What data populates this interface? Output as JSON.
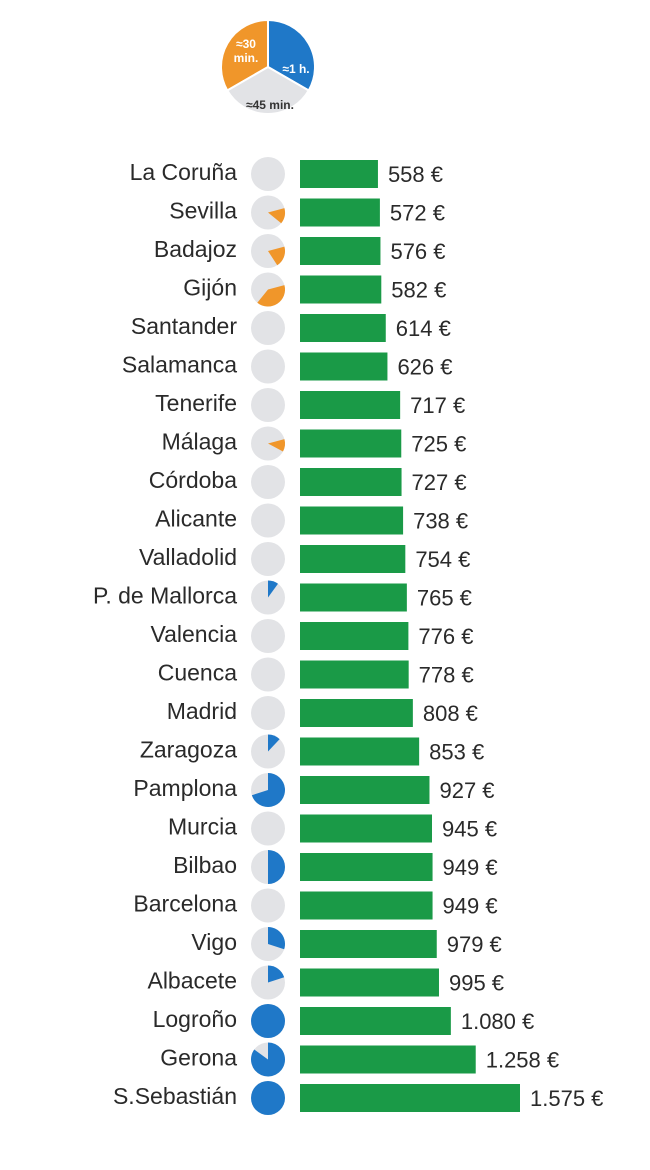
{
  "legend": {
    "items": [
      {
        "label_line1": "≈30",
        "label_line2": "min.",
        "color": "#f0962a"
      },
      {
        "label_line1": "≈1 h.",
        "label_line2": "",
        "color": "#1f78c8"
      },
      {
        "label_line1": "≈45 min.",
        "label_line2": "",
        "color": "#e2e3e6"
      }
    ]
  },
  "colors": {
    "bar": "#1a9a47",
    "pie_bg": "#e2e3e6",
    "pie_orange": "#f0962a",
    "pie_blue": "#1f78c8"
  },
  "chart_data": {
    "type": "bar",
    "orientation": "horizontal",
    "unit": "€",
    "categories": [
      "La Coruña",
      "Sevilla",
      "Badajoz",
      "Gijón",
      "Santander",
      "Salamanca",
      "Tenerife",
      "Málaga",
      "Córdoba",
      "Alicante",
      "Valladolid",
      "P. de Mallorca",
      "Valencia",
      "Cuenca",
      "Madrid",
      "Zaragoza",
      "Pamplona",
      "Murcia",
      "Bilbao",
      "Barcelona",
      "Vigo",
      "Albacete",
      "Logroño",
      "Gerona",
      "S.Sebastián"
    ],
    "values": [
      558,
      572,
      576,
      582,
      614,
      626,
      717,
      725,
      727,
      738,
      754,
      765,
      776,
      778,
      808,
      853,
      927,
      945,
      949,
      949,
      979,
      995,
      1080,
      1258,
      1575
    ],
    "value_labels": [
      "558 €",
      "572 €",
      "576 €",
      "582 €",
      "614 €",
      "626 €",
      "717 €",
      "725 €",
      "727 €",
      "738 €",
      "754 €",
      "765 €",
      "776 €",
      "778 €",
      "808 €",
      "853 €",
      "927 €",
      "945 €",
      "949 €",
      "949 €",
      "979 €",
      "995 €",
      "1.080 €",
      "1.258 €",
      "1.575 €"
    ],
    "pie_icons": [
      {
        "fraction": 0,
        "color": "orange"
      },
      {
        "fraction": 0.15,
        "color": "orange"
      },
      {
        "fraction": 0.2,
        "color": "orange"
      },
      {
        "fraction": 0.4,
        "color": "orange"
      },
      {
        "fraction": 0,
        "color": "orange"
      },
      {
        "fraction": 0,
        "color": "orange"
      },
      {
        "fraction": 0,
        "color": "orange"
      },
      {
        "fraction": 0.12,
        "color": "orange"
      },
      {
        "fraction": 0,
        "color": "orange"
      },
      {
        "fraction": 0,
        "color": "orange"
      },
      {
        "fraction": 0,
        "color": "orange"
      },
      {
        "fraction": 0.1,
        "color": "blue"
      },
      {
        "fraction": 0,
        "color": "blue"
      },
      {
        "fraction": 0,
        "color": "blue"
      },
      {
        "fraction": 0,
        "color": "blue"
      },
      {
        "fraction": 0.12,
        "color": "blue"
      },
      {
        "fraction": 0.7,
        "color": "blue"
      },
      {
        "fraction": 0,
        "color": "blue"
      },
      {
        "fraction": 0.5,
        "color": "blue"
      },
      {
        "fraction": 0,
        "color": "blue"
      },
      {
        "fraction": 0.3,
        "color": "blue"
      },
      {
        "fraction": 0.2,
        "color": "blue"
      },
      {
        "fraction": 1.0,
        "color": "blue"
      },
      {
        "fraction": 0.85,
        "color": "blue"
      },
      {
        "fraction": 1.0,
        "color": "blue"
      }
    ],
    "grid": false,
    "legend_position": "top"
  }
}
